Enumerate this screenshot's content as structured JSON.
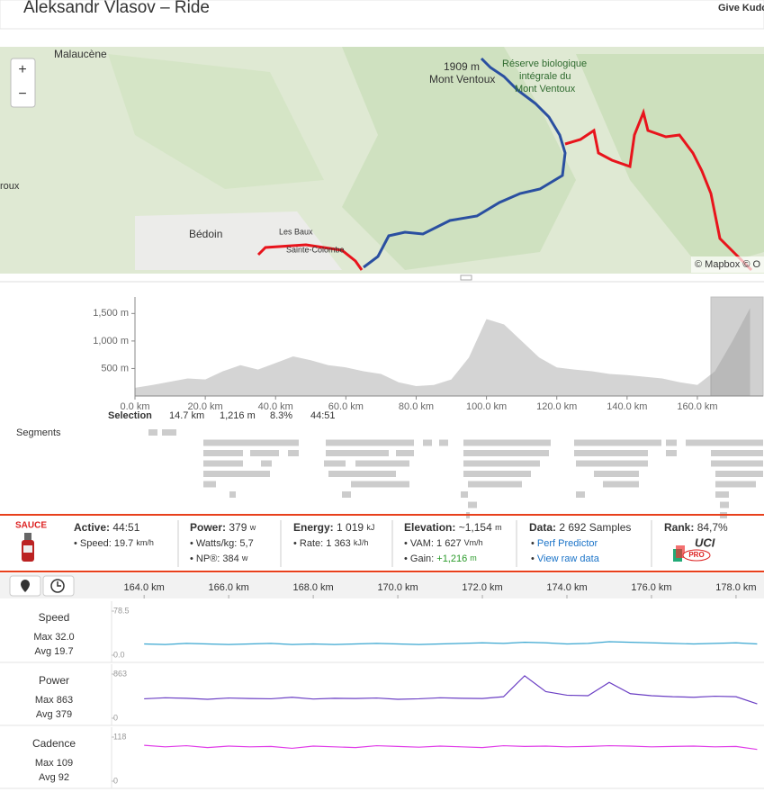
{
  "header": {
    "title": "Aleksandr Vlasov – Ride",
    "kudos": "Give Kudo"
  },
  "map": {
    "zoom_in": "+",
    "zoom_out": "−",
    "labels": [
      "Malaucène",
      "1909 m",
      "Mont Ventoux",
      "Réserve biologique",
      "intégrale du",
      "Mont Ventoux",
      "roux",
      "Bédoin",
      "Les Baux",
      "Sainte-Colombe",
      "© Mapbox © O"
    ]
  },
  "elevation_chart": {
    "type": "area",
    "color": "#d4d4d4",
    "x": [
      0,
      5,
      10,
      15,
      20,
      25,
      30,
      35,
      40,
      45,
      50,
      55,
      60,
      65,
      70,
      75,
      80,
      85,
      90,
      95,
      100,
      105,
      110,
      115,
      120,
      125,
      130,
      135,
      140,
      145,
      150,
      155,
      160,
      165,
      170,
      175
    ],
    "values": [
      150,
      200,
      260,
      320,
      300,
      450,
      560,
      480,
      600,
      720,
      650,
      560,
      520,
      450,
      400,
      250,
      180,
      200,
      300,
      700,
      1400,
      1300,
      1000,
      700,
      520,
      480,
      450,
      400,
      380,
      350,
      320,
      250,
      200,
      450,
      1000,
      1600
    ],
    "xlim": [
      0,
      178.7
    ],
    "ylim": [
      0,
      1800
    ],
    "xticks": [
      {
        "value": 0,
        "label": "0.0 km"
      },
      {
        "value": 20,
        "label": "20.0 km"
      },
      {
        "value": 40,
        "label": "40.0 km"
      },
      {
        "value": 60,
        "label": "60.0 km"
      },
      {
        "value": 80,
        "label": "80.0 km"
      },
      {
        "value": 100,
        "label": "100.0 km"
      },
      {
        "value": 120,
        "label": "120.0 km"
      },
      {
        "value": 140,
        "label": "140.0 km"
      },
      {
        "value": 160,
        "label": "160.0 km"
      }
    ],
    "yticks": [
      {
        "value": 500,
        "label": "500 m"
      },
      {
        "value": 1000,
        "label": "1,000 m"
      },
      {
        "value": 1500,
        "label": "1,500 m"
      }
    ]
  },
  "selection": {
    "label": "Selection",
    "distance": "14.7 km",
    "gain": "1,216 m",
    "grade": "8.3%",
    "time": "44:51"
  },
  "segments_label": "Segments",
  "stats": {
    "brand": "SAUCE",
    "active": {
      "label": "Active:",
      "value": "44:51",
      "speed_label": "• Speed:",
      "speed": "19.7",
      "speed_unit": "km/h"
    },
    "power": {
      "label": "Power:",
      "value": "379",
      "unit": "w",
      "wkg_label": "• Watts/kg:",
      "wkg": "5,7",
      "np_label": "• NP®:",
      "np": "384",
      "np_unit": "w"
    },
    "energy": {
      "label": "Energy:",
      "value": "1 019",
      "unit": "kJ",
      "rate_label": "• Rate:",
      "rate": "1 363",
      "rate_unit": "kJ/h"
    },
    "elevation": {
      "label": "Elevation:",
      "value": "~1,154",
      "unit": "m",
      "vam_label": "• VAM:",
      "vam": "1 627",
      "vam_unit": "Vm/h",
      "gain_label": "• Gain:",
      "gain": "+1,216",
      "gain_unit": "m"
    },
    "data": {
      "label": "Data:",
      "value": "2 692 Samples",
      "bullet1": "•",
      "link1": "Perf Predictor",
      "bullet2": "•",
      "link2": "View raw data"
    },
    "rank": {
      "label": "Rank:",
      "value": "84,7%",
      "badge": "UCI",
      "badge_sub": "PRO"
    }
  },
  "stream_charts": {
    "xlim": [
      163.23,
      178.64
    ],
    "xticks": [
      {
        "value": 164,
        "label": "164.0 km"
      },
      {
        "value": 166,
        "label": "166.0 km"
      },
      {
        "value": 168,
        "label": "168.0 km"
      },
      {
        "value": 170,
        "label": "170.0 km"
      },
      {
        "value": 172,
        "label": "172.0 km"
      },
      {
        "value": 174,
        "label": "174.0 km"
      },
      {
        "value": 176,
        "label": "176.0 km"
      },
      {
        "value": 178,
        "label": "178.0 km"
      }
    ],
    "x": [
      164.0,
      164.5,
      165.0,
      165.5,
      166.0,
      166.5,
      167.0,
      167.5,
      168.0,
      168.5,
      169.0,
      169.5,
      170.0,
      170.5,
      171.0,
      171.5,
      172.0,
      172.5,
      173.0,
      173.5,
      174.0,
      174.5,
      175.0,
      175.5,
      176.0,
      176.5,
      177.0,
      177.5,
      178.0,
      178.5
    ],
    "rows": [
      {
        "type": "line",
        "name": "Speed",
        "max": "Max 32.0",
        "avg": "Avg 19.7",
        "color": "#3aa6d0",
        "ylim": [
          0,
          78.5
        ],
        "yticks": [
          {
            "value": 0,
            "label": "0.0"
          },
          78.5
        ],
        "values": [
          20,
          19,
          21,
          20,
          19,
          20,
          21,
          19,
          20,
          19,
          20,
          21,
          20,
          19,
          20,
          21,
          22,
          21,
          23,
          22,
          20,
          21,
          24,
          23,
          22,
          21,
          20,
          21,
          22,
          20
        ]
      },
      {
        "type": "line",
        "name": "Power",
        "max": "Max 863",
        "avg": "Avg 379",
        "color": "#6b3fc4",
        "ylim": [
          0,
          863
        ],
        "yticks": [
          0,
          863
        ],
        "values": [
          380,
          400,
          390,
          370,
          395,
          385,
          380,
          410,
          375,
          390,
          385,
          395,
          370,
          380,
          400,
          390,
          385,
          420,
          830,
          520,
          450,
          440,
          700,
          480,
          440,
          420,
          410,
          430,
          420,
          280
        ]
      },
      {
        "type": "line",
        "name": "Cadence",
        "max": "Max 109",
        "avg": "Avg 92",
        "color": "#e03ce8",
        "ylim": [
          0,
          118
        ],
        "yticks": [
          0,
          118
        ],
        "values": [
          96,
          92,
          95,
          90,
          94,
          92,
          93,
          88,
          94,
          92,
          90,
          95,
          93,
          91,
          94,
          92,
          90,
          95,
          93,
          94,
          92,
          93,
          95,
          94,
          92,
          93,
          94,
          92,
          93,
          85
        ]
      }
    ]
  }
}
